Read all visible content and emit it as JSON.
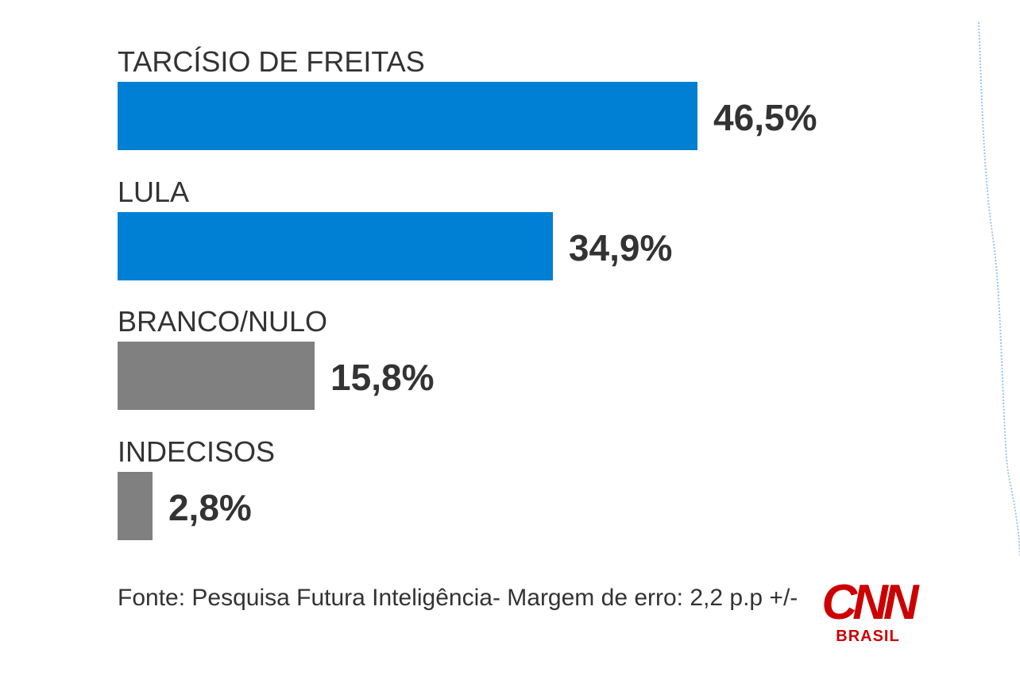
{
  "chart_data": {
    "type": "bar",
    "orientation": "horizontal",
    "categories": [
      "TARCÍSIO DE FREITAS",
      "LULA",
      "BRANCO/NULO",
      "INDECISOS"
    ],
    "values": [
      46.5,
      34.9,
      15.8,
      2.8
    ],
    "value_labels": [
      "46,5%",
      "34,9%",
      "15,8%",
      "2,8%"
    ],
    "colors": [
      "#0080d4",
      "#0080d4",
      "#808080",
      "#808080"
    ],
    "xlim": [
      0,
      100
    ],
    "grid": false
  },
  "source": "Fonte: Pesquisa Futura Inteligência- Margem de erro: 2,2 p.p +/-",
  "logo": {
    "brand": "CNN",
    "sub": "BRASIL",
    "color": "#cc0000"
  }
}
